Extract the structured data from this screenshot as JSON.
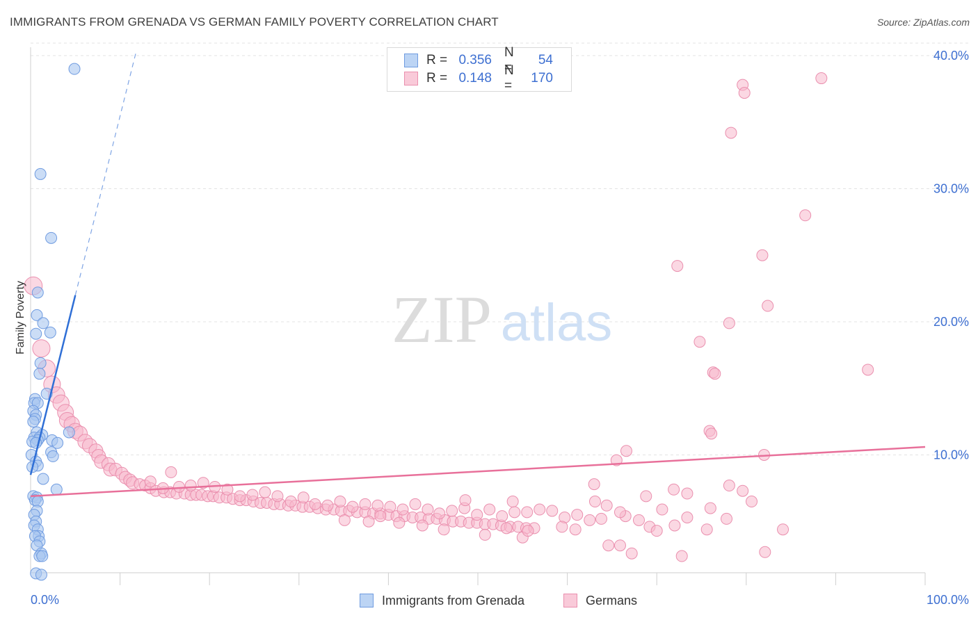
{
  "title": "IMMIGRANTS FROM GRENADA VS GERMAN FAMILY POVERTY CORRELATION CHART",
  "source": "Source: ZipAtlas.com",
  "legend": {
    "r_label": "R =",
    "n_label": "N =",
    "rows": [
      {
        "name": "Immigrants from Grenada",
        "r": "0.356",
        "n": "54"
      },
      {
        "name": "Germans",
        "r": "0.148",
        "n": "170"
      }
    ]
  },
  "colors": {
    "grenada_fill": "#a9c6f0",
    "grenada_stroke": "#6f9be0",
    "grenada_line": "#2f6fd6",
    "germans_fill": "#f7b8cc",
    "germans_stroke": "#ea8fae",
    "germans_line": "#e8709a",
    "axis_text": "#3d6fd1"
  },
  "watermark": {
    "zip": "ZIP",
    "atlas": "atlas"
  },
  "chart_data": {
    "type": "scatter",
    "title": "IMMIGRANTS FROM GRENADA VS GERMAN FAMILY POVERTY CORRELATION CHART",
    "xlabel": "",
    "ylabel": "Family Poverty",
    "xlim": [
      0,
      100
    ],
    "ylim": [
      0,
      42
    ],
    "x_tick_labels": [
      "0.0%",
      "100.0%"
    ],
    "y_ticks": [
      10,
      20,
      30,
      40
    ],
    "y_tick_labels": [
      "10.0%",
      "20.0%",
      "30.0%",
      "40.0%"
    ],
    "grid": true,
    "series": [
      {
        "name": "Immigrants from Grenada",
        "r": 0.356,
        "n": 54,
        "trend": {
          "x0": 0,
          "y0": 8.5,
          "x1": 5.0,
          "y1": 22.0,
          "dash_x1": 11.8,
          "dash_y1": 40.3
        },
        "points": [
          [
            4.9,
            39.0
          ],
          [
            1.1,
            31.1
          ],
          [
            2.3,
            26.3
          ],
          [
            0.8,
            22.2
          ],
          [
            0.7,
            20.5
          ],
          [
            1.4,
            19.9
          ],
          [
            2.2,
            19.2
          ],
          [
            0.6,
            19.1
          ],
          [
            1.1,
            16.9
          ],
          [
            1.0,
            16.1
          ],
          [
            1.8,
            14.6
          ],
          [
            0.5,
            14.2
          ],
          [
            0.4,
            13.9
          ],
          [
            0.8,
            13.9
          ],
          [
            0.3,
            13.3
          ],
          [
            0.6,
            13.0
          ],
          [
            0.5,
            12.7
          ],
          [
            0.3,
            12.5
          ],
          [
            0.7,
            11.7
          ],
          [
            1.3,
            11.5
          ],
          [
            0.4,
            11.3
          ],
          [
            1.0,
            11.3
          ],
          [
            0.8,
            11.1
          ],
          [
            2.4,
            11.1
          ],
          [
            0.2,
            11.0
          ],
          [
            0.6,
            10.9
          ],
          [
            3.0,
            10.9
          ],
          [
            4.3,
            11.7
          ],
          [
            2.3,
            10.2
          ],
          [
            0.1,
            10.0
          ],
          [
            2.5,
            9.9
          ],
          [
            0.6,
            9.5
          ],
          [
            0.8,
            9.2
          ],
          [
            0.2,
            9.1
          ],
          [
            1.4,
            8.2
          ],
          [
            2.9,
            7.4
          ],
          [
            0.3,
            6.9
          ],
          [
            0.7,
            6.8
          ],
          [
            0.5,
            6.6
          ],
          [
            0.8,
            6.5
          ],
          [
            0.7,
            5.8
          ],
          [
            0.4,
            5.5
          ],
          [
            0.6,
            5.0
          ],
          [
            0.4,
            4.7
          ],
          [
            0.8,
            4.4
          ],
          [
            0.9,
            3.9
          ],
          [
            0.5,
            3.9
          ],
          [
            1.0,
            3.5
          ],
          [
            0.7,
            3.2
          ],
          [
            1.2,
            2.6
          ],
          [
            1.0,
            2.4
          ],
          [
            1.3,
            2.4
          ],
          [
            0.6,
            1.1
          ],
          [
            1.2,
            1.0
          ]
        ]
      },
      {
        "name": "Germans",
        "r": 0.148,
        "n": 170,
        "trend": {
          "x0": 0,
          "y0": 6.9,
          "x1": 100,
          "y1": 10.6
        },
        "points": [
          [
            88.4,
            38.3
          ],
          [
            79.6,
            37.8
          ],
          [
            79.8,
            37.2
          ],
          [
            78.3,
            34.2
          ],
          [
            86.6,
            28.0
          ],
          [
            81.8,
            25.0
          ],
          [
            72.3,
            24.2
          ],
          [
            82.4,
            21.2
          ],
          [
            78.1,
            19.9
          ],
          [
            74.8,
            18.5
          ],
          [
            93.6,
            16.4
          ],
          [
            76.3,
            16.2
          ],
          [
            76.5,
            16.1
          ],
          [
            75.9,
            11.8
          ],
          [
            76.1,
            11.6
          ],
          [
            82.0,
            10.0
          ],
          [
            66.6,
            10.3
          ],
          [
            65.5,
            9.6
          ],
          [
            0.3,
            22.7
          ],
          [
            1.2,
            18.0
          ],
          [
            1.8,
            16.5
          ],
          [
            2.4,
            15.3
          ],
          [
            2.9,
            14.5
          ],
          [
            3.4,
            13.9
          ],
          [
            3.9,
            13.2
          ],
          [
            4.1,
            12.6
          ],
          [
            4.6,
            12.3
          ],
          [
            5.0,
            11.8
          ],
          [
            5.5,
            11.6
          ],
          [
            6.1,
            11.0
          ],
          [
            6.6,
            10.7
          ],
          [
            7.3,
            10.3
          ],
          [
            7.6,
            9.9
          ],
          [
            7.9,
            9.5
          ],
          [
            8.7,
            9.3
          ],
          [
            8.9,
            8.9
          ],
          [
            9.5,
            8.9
          ],
          [
            10.2,
            8.6
          ],
          [
            10.6,
            8.3
          ],
          [
            11.1,
            8.1
          ],
          [
            11.4,
            7.9
          ],
          [
            12.2,
            7.8
          ],
          [
            12.8,
            7.7
          ],
          [
            13.4,
            7.5
          ],
          [
            14.0,
            7.3
          ],
          [
            14.9,
            7.2
          ],
          [
            15.6,
            7.2
          ],
          [
            16.3,
            7.1
          ],
          [
            17.2,
            7.1
          ],
          [
            17.9,
            7.0
          ],
          [
            18.5,
            7.0
          ],
          [
            19.1,
            7.0
          ],
          [
            19.8,
            6.9
          ],
          [
            20.4,
            6.9
          ],
          [
            21.1,
            6.8
          ],
          [
            21.9,
            6.8
          ],
          [
            22.6,
            6.7
          ],
          [
            23.4,
            6.6
          ],
          [
            24.1,
            6.6
          ],
          [
            24.9,
            6.5
          ],
          [
            25.7,
            6.4
          ],
          [
            26.4,
            6.4
          ],
          [
            27.2,
            6.3
          ],
          [
            27.9,
            6.3
          ],
          [
            28.8,
            6.2
          ],
          [
            29.6,
            6.2
          ],
          [
            30.4,
            6.1
          ],
          [
            31.2,
            6.1
          ],
          [
            32.1,
            6.0
          ],
          [
            33.0,
            5.9
          ],
          [
            33.9,
            5.9
          ],
          [
            34.7,
            5.8
          ],
          [
            35.6,
            5.8
          ],
          [
            36.5,
            5.7
          ],
          [
            37.4,
            5.7
          ],
          [
            38.3,
            5.6
          ],
          [
            39.1,
            5.6
          ],
          [
            40.0,
            5.5
          ],
          [
            40.9,
            5.4
          ],
          [
            41.8,
            5.4
          ],
          [
            42.7,
            5.3
          ],
          [
            43.6,
            5.3
          ],
          [
            44.5,
            5.2
          ],
          [
            45.4,
            5.2
          ],
          [
            46.3,
            5.1
          ],
          [
            47.2,
            5.0
          ],
          [
            48.1,
            5.0
          ],
          [
            49.0,
            4.9
          ],
          [
            49.9,
            4.9
          ],
          [
            50.8,
            4.8
          ],
          [
            51.7,
            4.8
          ],
          [
            52.6,
            4.7
          ],
          [
            53.6,
            4.6
          ],
          [
            54.5,
            4.6
          ],
          [
            55.4,
            4.5
          ],
          [
            56.3,
            4.5
          ],
          [
            13.4,
            8.0
          ],
          [
            14.8,
            7.5
          ],
          [
            15.7,
            8.7
          ],
          [
            16.6,
            7.6
          ],
          [
            17.9,
            7.7
          ],
          [
            19.3,
            7.9
          ],
          [
            20.6,
            7.6
          ],
          [
            22.0,
            7.4
          ],
          [
            23.4,
            6.9
          ],
          [
            24.8,
            7.0
          ],
          [
            26.2,
            7.2
          ],
          [
            27.6,
            6.9
          ],
          [
            29.1,
            6.5
          ],
          [
            30.5,
            6.8
          ],
          [
            31.8,
            6.3
          ],
          [
            33.2,
            6.2
          ],
          [
            34.6,
            6.5
          ],
          [
            36.0,
            6.1
          ],
          [
            37.4,
            6.3
          ],
          [
            38.8,
            6.2
          ],
          [
            40.2,
            6.1
          ],
          [
            41.6,
            5.9
          ],
          [
            43.0,
            6.3
          ],
          [
            44.4,
            5.9
          ],
          [
            45.7,
            5.6
          ],
          [
            47.1,
            5.8
          ],
          [
            48.5,
            6.0
          ],
          [
            49.9,
            5.5
          ],
          [
            51.3,
            5.9
          ],
          [
            52.7,
            5.4
          ],
          [
            54.1,
            5.7
          ],
          [
            55.5,
            5.7
          ],
          [
            56.9,
            5.9
          ],
          [
            58.3,
            5.8
          ],
          [
            59.7,
            5.3
          ],
          [
            61.1,
            5.5
          ],
          [
            62.5,
            5.1
          ],
          [
            63.8,
            5.2
          ],
          [
            64.4,
            6.2
          ],
          [
            66.5,
            5.4
          ],
          [
            68.0,
            5.1
          ],
          [
            69.2,
            4.6
          ],
          [
            70.6,
            5.9
          ],
          [
            72.0,
            4.7
          ],
          [
            73.4,
            5.3
          ],
          [
            35.1,
            5.1
          ],
          [
            37.8,
            5.0
          ],
          [
            39.1,
            5.4
          ],
          [
            41.2,
            4.9
          ],
          [
            43.8,
            4.7
          ],
          [
            46.2,
            4.4
          ],
          [
            48.6,
            6.6
          ],
          [
            50.8,
            4.0
          ],
          [
            53.2,
            4.5
          ],
          [
            55.0,
            3.8
          ],
          [
            55.6,
            4.3
          ],
          [
            59.4,
            4.6
          ],
          [
            60.9,
            4.4
          ],
          [
            64.6,
            3.2
          ],
          [
            65.9,
            3.2
          ],
          [
            67.2,
            2.6
          ],
          [
            70.0,
            4.3
          ],
          [
            72.8,
            2.4
          ],
          [
            75.6,
            4.4
          ],
          [
            77.8,
            5.2
          ],
          [
            80.6,
            6.5
          ],
          [
            82.1,
            2.7
          ],
          [
            84.1,
            4.4
          ],
          [
            63.1,
            6.5
          ],
          [
            65.9,
            5.7
          ],
          [
            68.8,
            6.9
          ],
          [
            71.9,
            7.4
          ],
          [
            73.4,
            7.1
          ],
          [
            76.0,
            6.0
          ],
          [
            78.1,
            7.7
          ],
          [
            79.6,
            7.3
          ],
          [
            63.0,
            7.8
          ],
          [
            53.9,
            6.5
          ]
        ]
      }
    ]
  }
}
